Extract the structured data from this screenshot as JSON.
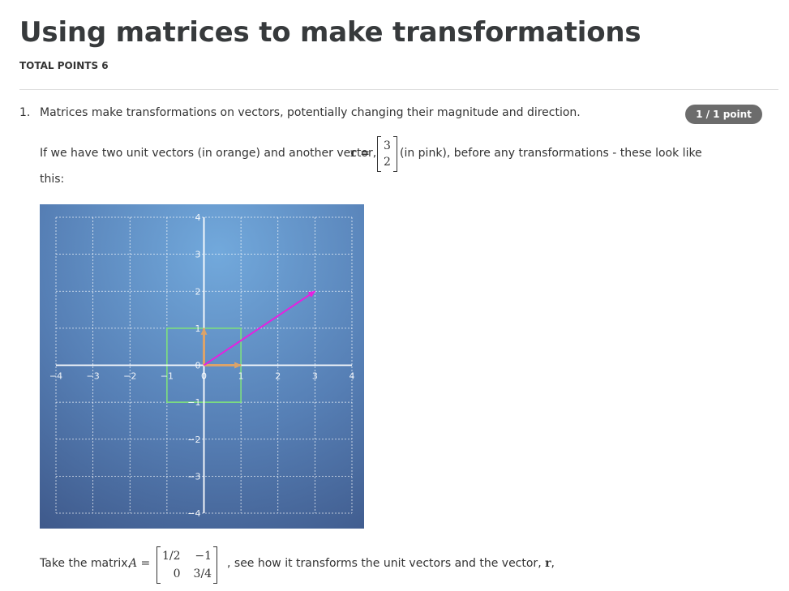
{
  "header": {
    "title": "Using matrices to make transformations",
    "total_points": "TOTAL POINTS 6"
  },
  "question": {
    "number": "1.",
    "intro": "Matrices make transformations on vectors, potentially changing their magnitude and direction.",
    "badge": "1 / 1 point",
    "para1_before": "If we have two unit vectors (in orange) and another vector,",
    "para1_var": "r =",
    "r_vector": [
      "3",
      "2"
    ],
    "para1_after": "(in pink), before any transformations - these look like",
    "para1_wrap": "this:",
    "para2_before": "Take the matrix,",
    "para2_var": "A =",
    "matrix_A": [
      [
        "1/2",
        "−1"
      ],
      [
        "0",
        "3/4"
      ]
    ],
    "para2_after": ", see how it transforms the unit vectors and the vector,",
    "para2_r": "r",
    "para2_end": ","
  },
  "chart_data": {
    "type": "vector-plot",
    "xlim": [
      -4,
      4
    ],
    "ylim": [
      -4,
      4
    ],
    "grid": true,
    "xticks": [
      "−4",
      "−3",
      "−2",
      "−1",
      "0",
      "1",
      "2",
      "3",
      "4"
    ],
    "yticks": [
      "4",
      "3",
      "2",
      "1",
      "0",
      "−1",
      "−2",
      "−3",
      "−4"
    ],
    "xtick_values": [
      -4,
      -3,
      -2,
      -1,
      0,
      1,
      2,
      3,
      4
    ],
    "ytick_values": [
      4,
      3,
      2,
      1,
      0,
      -1,
      -2,
      -3,
      -4
    ],
    "unit_vectors": [
      {
        "from": [
          0,
          0
        ],
        "to": [
          1,
          0
        ]
      },
      {
        "from": [
          0,
          0
        ],
        "to": [
          0,
          1
        ]
      }
    ],
    "vector_r": {
      "from": [
        0,
        0
      ],
      "to": [
        3,
        2
      ]
    },
    "square": {
      "x": [
        -1,
        1
      ],
      "y": [
        -1,
        1
      ]
    },
    "colors": {
      "background_top": "#6fa6d9",
      "background_bottom": "#3f5b8e",
      "axes": "#ffffff",
      "grid": "#ffffff",
      "unit_vectors": "#dba36a",
      "vector_r": "#e620e0",
      "square": "#7ee07e"
    }
  }
}
